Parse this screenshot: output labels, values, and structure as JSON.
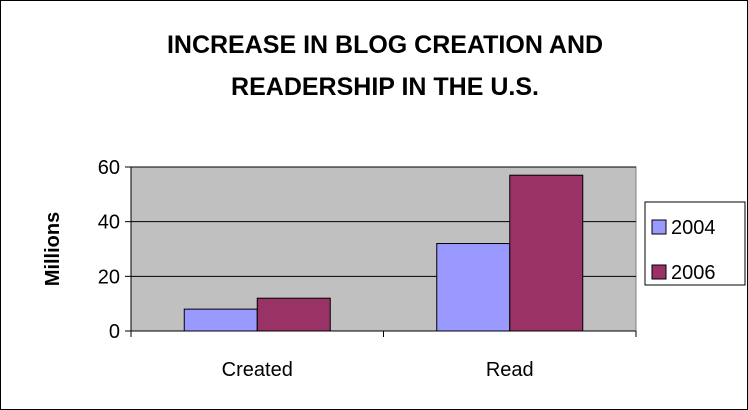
{
  "chart_data": {
    "type": "bar",
    "title_lines": [
      "INCREASE IN BLOG CREATION AND",
      "READERSHIP IN THE U.S."
    ],
    "xlabel": "",
    "ylabel": "Millions",
    "categories": [
      "Created",
      "Read"
    ],
    "series": [
      {
        "name": "2004",
        "color": "#9999ff",
        "values": [
          8,
          32
        ]
      },
      {
        "name": "2006",
        "color": "#993366",
        "values": [
          12,
          57
        ]
      }
    ],
    "ylim": [
      0,
      60
    ],
    "yticks": [
      0,
      20,
      40,
      60
    ],
    "grid": true,
    "plot_background": "#c0c0c0",
    "legend_position": "right"
  }
}
